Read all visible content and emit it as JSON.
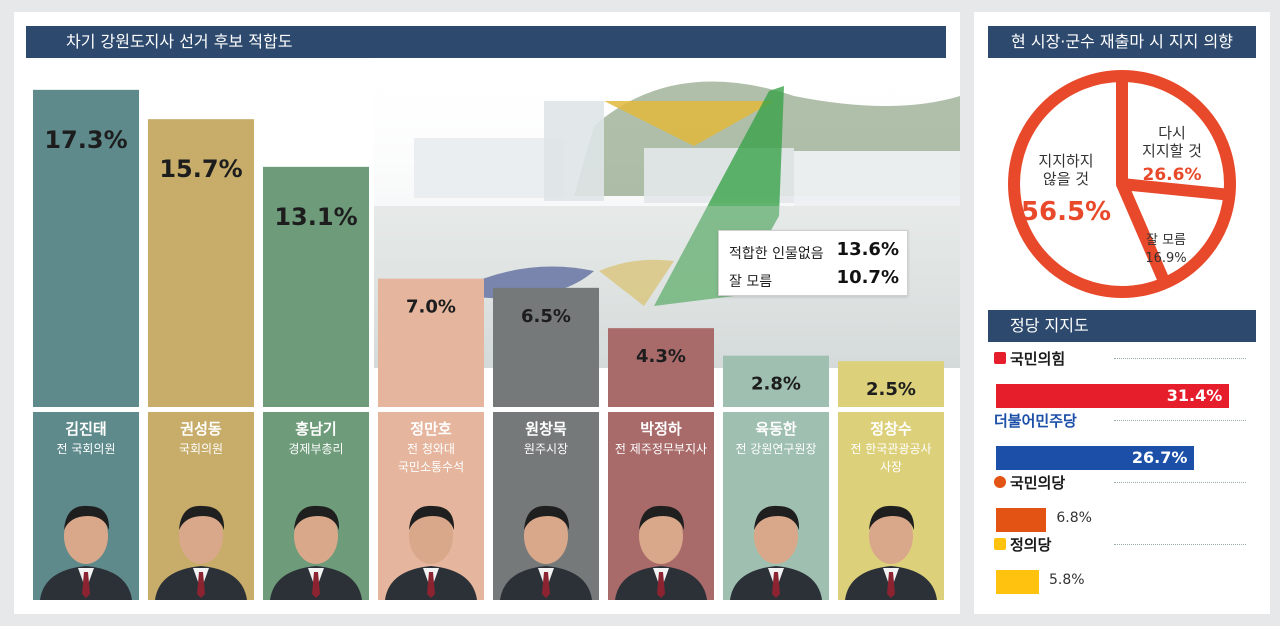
{
  "left_title": "차기 강원도지사 선거 후보 적합도",
  "pie_title": "현 시장·군수 재출마 시 지지 의향",
  "party_title": "정당 지지도",
  "chart_data": [
    {
      "type": "bar",
      "title": "차기 강원도지사 선거 후보 적합도",
      "categories": [
        "김진태",
        "권성동",
        "홍남기",
        "정만호",
        "원창묵",
        "박정하",
        "육동한",
        "정창수"
      ],
      "values": [
        17.3,
        15.7,
        13.1,
        7.0,
        6.5,
        4.3,
        2.8,
        2.5
      ],
      "value_labels": [
        "17.3%",
        "15.7%",
        "13.1%",
        "7.0%",
        "6.5%",
        "4.3%",
        "2.8%",
        "2.5%"
      ],
      "subtitles": [
        [
          "전 국회의원"
        ],
        [
          "국회의원"
        ],
        [
          "경제부총리"
        ],
        [
          "전 청와대",
          "국민소통수석"
        ],
        [
          "원주시장"
        ],
        [
          "전 제주정무부지사"
        ],
        [
          "전 강원연구원장"
        ],
        [
          "전 한국관광공사",
          "사장"
        ]
      ],
      "colors": [
        "#5e8a8c",
        "#c8ad6a",
        "#6e9b7a",
        "#e5b59d",
        "#76797a",
        "#a96a6a",
        "#9fbfb1",
        "#ddd07a"
      ],
      "ylim": [
        0,
        18
      ],
      "notes": [
        {
          "label": "적합한 인물없음",
          "value": "13.6%"
        },
        {
          "label": "잘 모름",
          "value": "10.7%"
        }
      ]
    },
    {
      "type": "pie",
      "title": "현 시장·군수 재출마 시 지지 의향",
      "slices": [
        {
          "lines": [
            "다시",
            "지지할 것"
          ],
          "value": 26.6,
          "label": "26.6%"
        },
        {
          "lines": [
            "잘 모름"
          ],
          "value": 16.9,
          "label": "16.9%"
        },
        {
          "lines": [
            "지지하지",
            "않을 것"
          ],
          "value": 56.5,
          "label": "56.5%"
        }
      ],
      "colors": {
        "accent": "#e8492b",
        "text": "#333333"
      }
    },
    {
      "type": "bar",
      "orientation": "horizontal",
      "title": "정당 지지도",
      "categories": [
        "국민의힘",
        "더불어민주당",
        "국민의당",
        "정의당"
      ],
      "values": [
        31.4,
        26.7,
        6.8,
        5.8
      ],
      "value_labels": [
        "31.4%",
        "26.7%",
        "6.8%",
        "5.8%"
      ],
      "colors": [
        "#e61e2b",
        "#1b4fa8",
        "#e35414",
        "#ffc20e"
      ],
      "xlim": [
        0,
        34
      ]
    }
  ]
}
